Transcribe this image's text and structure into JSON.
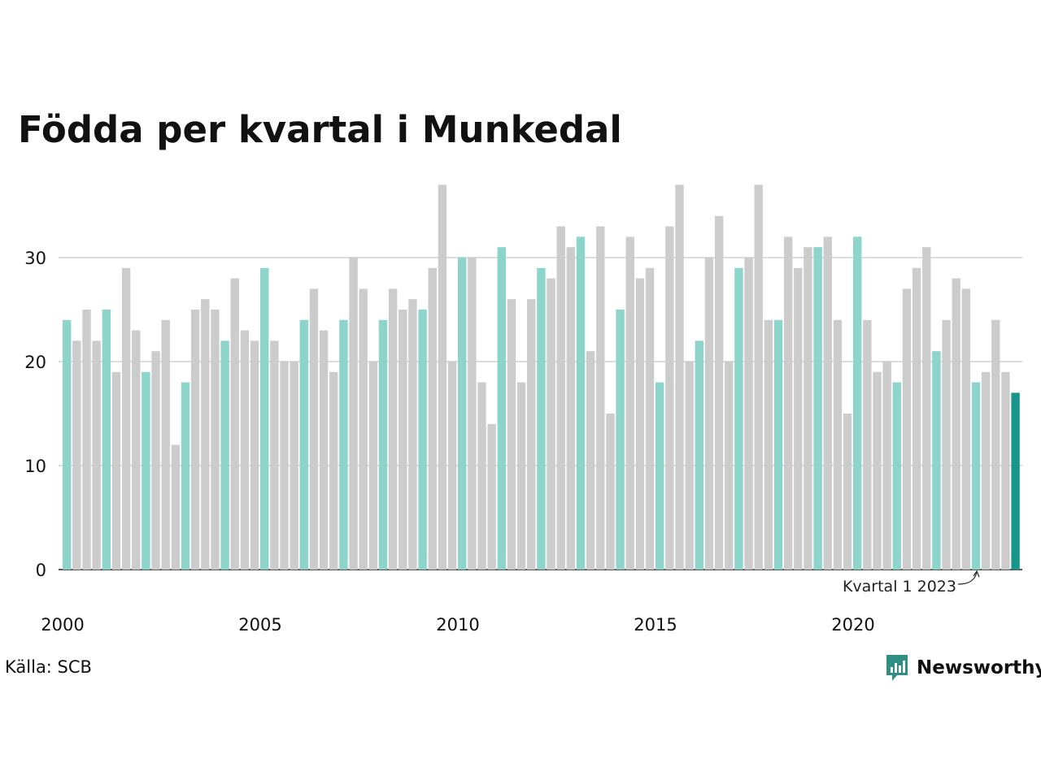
{
  "title": "Födda per kvartal i Munkedal",
  "source": "Källa: SCB",
  "brand": "Newsworthy",
  "colors": {
    "q1": "#8dd4ca",
    "other": "#cccccc",
    "highlight": "#18958a",
    "grid": "#dddddd",
    "axis": "#222222",
    "brand": "#2f8f83"
  },
  "chart_data": {
    "type": "bar",
    "title": "Födda per kvartal i Munkedal",
    "xlabel": "",
    "ylabel": "",
    "ylim": [
      0,
      37
    ],
    "yticks": [
      0,
      10,
      20,
      30
    ],
    "xticks": [
      "2000",
      "2005",
      "2010",
      "2015",
      "2020"
    ],
    "grid": true,
    "start": "2000 Q1",
    "annotation": "Kvartal 1 2023",
    "series": [
      {
        "values": [
          24,
          22,
          25,
          22,
          25,
          19,
          29,
          23,
          19,
          21,
          24,
          12,
          18,
          25,
          26,
          25,
          22,
          28,
          23,
          22,
          29,
          22,
          20,
          20,
          24,
          27,
          23,
          19,
          24,
          30,
          27,
          20,
          24,
          27,
          25,
          26,
          25,
          29,
          37,
          20,
          30,
          30,
          18,
          14,
          31,
          26,
          18,
          26,
          29,
          28,
          33,
          31,
          32,
          21,
          33,
          15,
          25,
          32,
          28,
          29,
          18,
          33,
          37,
          20,
          22,
          30,
          34,
          20,
          29,
          30,
          37,
          24,
          24,
          32,
          29,
          31,
          31,
          32,
          24,
          15,
          32,
          24,
          19,
          20,
          18,
          27,
          29,
          31,
          21,
          24,
          28,
          27,
          18,
          19,
          24,
          19,
          17
        ]
      }
    ]
  }
}
